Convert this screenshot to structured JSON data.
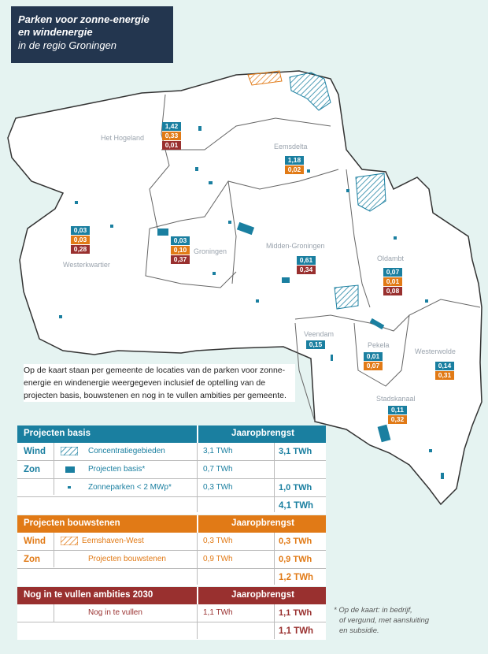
{
  "title": {
    "line1": "Parken voor zonne-energie",
    "line2": "en windenergie",
    "line3": "in de regio Groningen"
  },
  "municipalities": [
    {
      "name": "Het Hogeland",
      "values": [
        "1,42",
        "0,33",
        "0,01"
      ]
    },
    {
      "name": "Eemsdelta",
      "values": [
        "1,18",
        "0,02"
      ]
    },
    {
      "name": "Westerkwartier",
      "values": [
        "0,03",
        "0,03",
        "0,28"
      ]
    },
    {
      "name": "Groningen",
      "values": [
        "0,03",
        "0,10",
        "0,37"
      ]
    },
    {
      "name": "Midden-Groningen",
      "values": [
        "0,61",
        "0,34"
      ]
    },
    {
      "name": "Oldambt",
      "values": [
        "0,07",
        "0,01",
        "0,08"
      ]
    },
    {
      "name": "Veendam",
      "values": [
        "0,15"
      ]
    },
    {
      "name": "Pekela",
      "values": [
        "0,01",
        "0,07"
      ]
    },
    {
      "name": "Westerwolde",
      "values": [
        "0,14",
        "0,31"
      ]
    },
    {
      "name": "Stadskanaal",
      "values": [
        "0,11",
        "0,32"
      ]
    }
  ],
  "intro": "Op de kaart staan per gemeente de locaties van de parken voor zonne-energie en windenergie weergegeven inclusief de optelling van de projecten basis, bouwstenen en nog in te vullen ambities per gemeente.",
  "table_basis": {
    "header": "Projecten basis",
    "col": "Jaaropbrengst",
    "rows": [
      {
        "cat": "Wind",
        "item": "Concentratiegebieden",
        "val": "3,1 TWh",
        "sum": "3,1 TWh"
      },
      {
        "cat": "Zon",
        "item": "Projecten basis*",
        "val": "0,7 TWh",
        "sum": ""
      },
      {
        "cat": "",
        "item": "Zonneparken < 2 MWp*",
        "val": "0,3 TWh",
        "sum": "1,0 TWh"
      }
    ],
    "total": "4,1 TWh"
  },
  "table_bouw": {
    "header": "Projecten bouwstenen",
    "col": "Jaaropbrengst",
    "rows": [
      {
        "cat": "Wind",
        "item": "Eemshaven-West",
        "val": "0,3 TWh",
        "sum": "0,3 TWh"
      },
      {
        "cat": "Zon",
        "item": "Projecten bouwstenen",
        "val": "0,9 TWh",
        "sum": "0,9 TWh"
      }
    ],
    "total": "1,2 TWh"
  },
  "table_ambitie": {
    "header": "Nog in te vullen ambities 2030",
    "col": "Jaaropbrengst",
    "rows": [
      {
        "cat": "",
        "item": "Nog in te vullen",
        "val": "1,1 TWh",
        "sum": "1,1 TWh"
      }
    ],
    "total": "1,1 TWh"
  },
  "footnote": {
    "line1": "* Op de kaart: in bedrijf,",
    "line2": "of vergund, met aansluiting",
    "line3": "en subsidie."
  },
  "colors": {
    "basis": "#1a7fa0",
    "bouw": "#e17a16",
    "ambitie": "#99302f",
    "title_bg": "#23364f",
    "bg": "#e5f3f1"
  }
}
